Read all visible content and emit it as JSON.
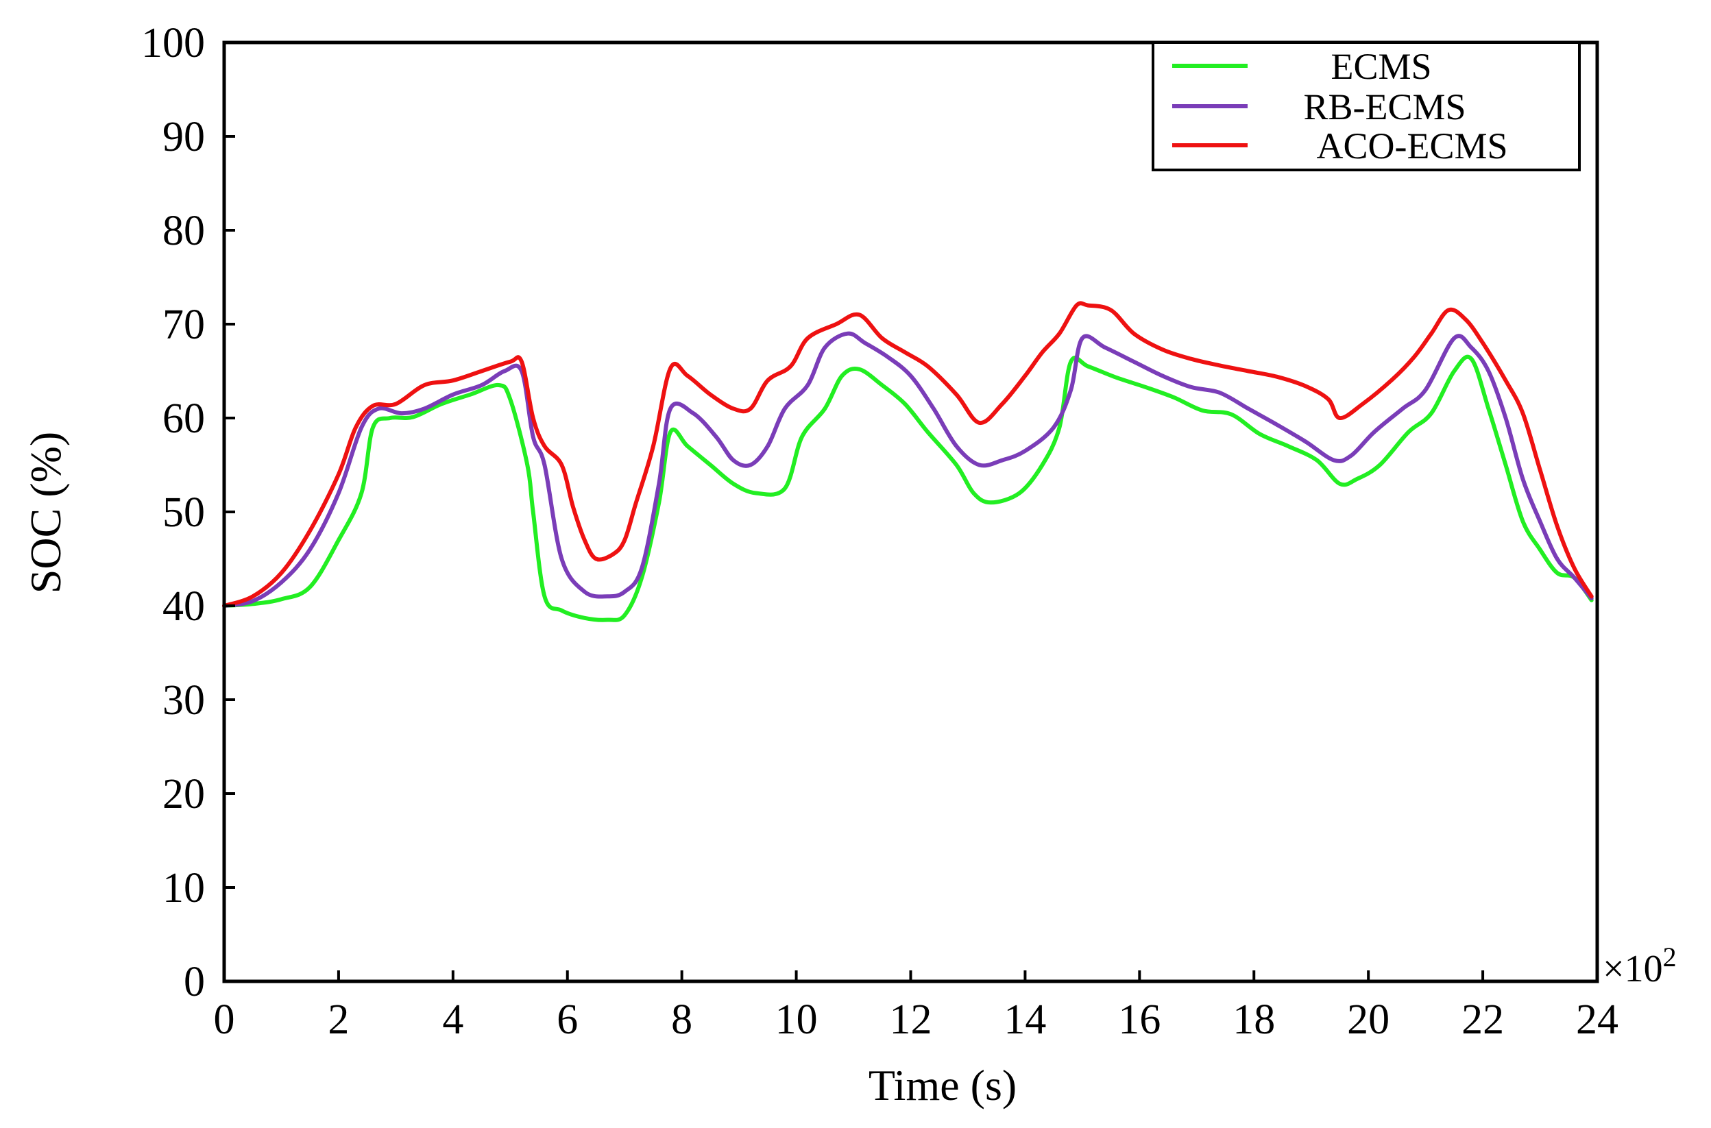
{
  "chart_data": {
    "type": "line",
    "title": "",
    "xlabel": "Time (s)",
    "ylabel": "SOC (%)",
    "x_multiplier": "×10",
    "x_multiplier_exp": "2",
    "xlim": [
      0,
      24
    ],
    "ylim": [
      0,
      100
    ],
    "xticks": [
      "0",
      "2",
      "4",
      "6",
      "8",
      "10",
      "12",
      "14",
      "16",
      "18",
      "20",
      "22",
      "24"
    ],
    "yticks": [
      "0",
      "10",
      "20",
      "30",
      "40",
      "50",
      "60",
      "70",
      "80",
      "90",
      "100"
    ],
    "grid": false,
    "legend_position": "top-right",
    "series": [
      {
        "name": "ECMS",
        "color": "#22ee22",
        "x": [
          0,
          0.5,
          1,
          1.5,
          2,
          2.4,
          2.6,
          2.9,
          3.3,
          3.8,
          4.3,
          4.8,
          5.0,
          5.3,
          5.4,
          5.6,
          5.9,
          6.3,
          6.7,
          7.0,
          7.3,
          7.6,
          7.8,
          8.1,
          8.5,
          8.9,
          9.3,
          9.8,
          10.1,
          10.5,
          10.8,
          11.1,
          11.5,
          11.9,
          12.3,
          12.8,
          13.1,
          13.4,
          13.9,
          14.3,
          14.6,
          14.8,
          15.1,
          15.6,
          16.1,
          16.6,
          17.1,
          17.6,
          18.1,
          18.6,
          19.1,
          19.5,
          19.8,
          20.2,
          20.7,
          21.1,
          21.5,
          21.8,
          22.1,
          22.4,
          22.7,
          23.0,
          23.3,
          23.6,
          23.9
        ],
        "values": [
          40,
          40.2,
          40.7,
          42,
          47,
          52,
          59,
          60,
          60.1,
          61.5,
          62.5,
          63.5,
          62,
          55,
          50,
          41,
          39.5,
          38.7,
          38.5,
          39,
          43,
          51,
          58.5,
          57,
          55,
          53,
          52,
          52.5,
          58,
          61,
          64.5,
          65.2,
          63.5,
          61.5,
          58.5,
          55,
          52,
          51,
          52,
          55,
          59,
          66,
          65.5,
          64.3,
          63.3,
          62.2,
          60.8,
          60.4,
          58.3,
          57,
          55.5,
          53,
          53.5,
          55,
          58.5,
          60.5,
          65,
          66.3,
          61,
          55,
          49,
          46,
          43.5,
          43,
          40.6
        ]
      },
      {
        "name": "RB-ECMS",
        "color": "#7a3db8",
        "x": [
          0,
          0.5,
          1,
          1.5,
          2,
          2.4,
          2.7,
          3.1,
          3.5,
          4.0,
          4.5,
          4.9,
          5.2,
          5.4,
          5.6,
          5.9,
          6.3,
          6.7,
          7.0,
          7.3,
          7.6,
          7.8,
          8.2,
          8.6,
          8.9,
          9.2,
          9.5,
          9.8,
          10.2,
          10.5,
          10.9,
          11.2,
          11.6,
          12.0,
          12.4,
          12.8,
          13.2,
          13.6,
          14.0,
          14.5,
          14.8,
          15.0,
          15.4,
          15.9,
          16.4,
          16.9,
          17.4,
          17.9,
          18.4,
          18.9,
          19.4,
          19.7,
          20.1,
          20.6,
          21.0,
          21.5,
          21.8,
          22.1,
          22.4,
          22.7,
          23.0,
          23.3,
          23.6,
          23.9
        ],
        "values": [
          40,
          40.5,
          42.5,
          46,
          52,
          59,
          61,
          60.5,
          61,
          62.5,
          63.5,
          65,
          65,
          58,
          55,
          45,
          41.5,
          41,
          41.5,
          44,
          53,
          61,
          60.5,
          58,
          55.5,
          55,
          57,
          61,
          63.5,
          67.5,
          69,
          68,
          66.5,
          64.5,
          61,
          57,
          55,
          55.5,
          56.5,
          59,
          63,
          68.5,
          67.5,
          66,
          64.5,
          63.3,
          62.7,
          61,
          59.3,
          57.5,
          55.5,
          56,
          58.5,
          61,
          63,
          68.5,
          67.5,
          65,
          60,
          53.5,
          49,
          45,
          43,
          40.8
        ]
      },
      {
        "name": "ACO-ECMS",
        "color": "#ee1111",
        "x": [
          0,
          0.5,
          1,
          1.5,
          2,
          2.3,
          2.6,
          3.0,
          3.5,
          4.0,
          4.5,
          5.0,
          5.2,
          5.4,
          5.6,
          5.9,
          6.1,
          6.3,
          6.5,
          6.8,
          7.0,
          7.2,
          7.5,
          7.8,
          8.1,
          8.5,
          8.9,
          9.2,
          9.5,
          9.9,
          10.2,
          10.7,
          11.1,
          11.5,
          11.9,
          12.3,
          12.8,
          13.2,
          13.6,
          14.0,
          14.3,
          14.6,
          14.9,
          15.1,
          15.5,
          15.9,
          16.4,
          16.9,
          17.4,
          17.9,
          18.4,
          18.9,
          19.3,
          19.5,
          19.9,
          20.4,
          20.8,
          21.1,
          21.4,
          21.7,
          22.0,
          22.4,
          22.7,
          23.0,
          23.3,
          23.6,
          23.9
        ],
        "values": [
          40,
          41,
          43.5,
          48,
          54,
          59,
          61.3,
          61.5,
          63.5,
          64,
          65,
          66,
          66,
          60,
          57,
          55,
          50.5,
          47,
          45,
          45.5,
          47,
          51,
          57,
          65.3,
          64.5,
          62.5,
          61,
          61,
          64,
          65.5,
          68.5,
          70,
          71,
          68.5,
          67,
          65.5,
          62.5,
          59.5,
          61.5,
          64.5,
          67,
          69,
          72,
          72,
          71.5,
          69,
          67.3,
          66.3,
          65.6,
          65,
          64.4,
          63.4,
          62,
          60,
          61.5,
          64,
          66.5,
          69,
          71.5,
          70.5,
          68,
          64,
          60.5,
          54.5,
          48.5,
          44,
          41
        ]
      }
    ]
  }
}
